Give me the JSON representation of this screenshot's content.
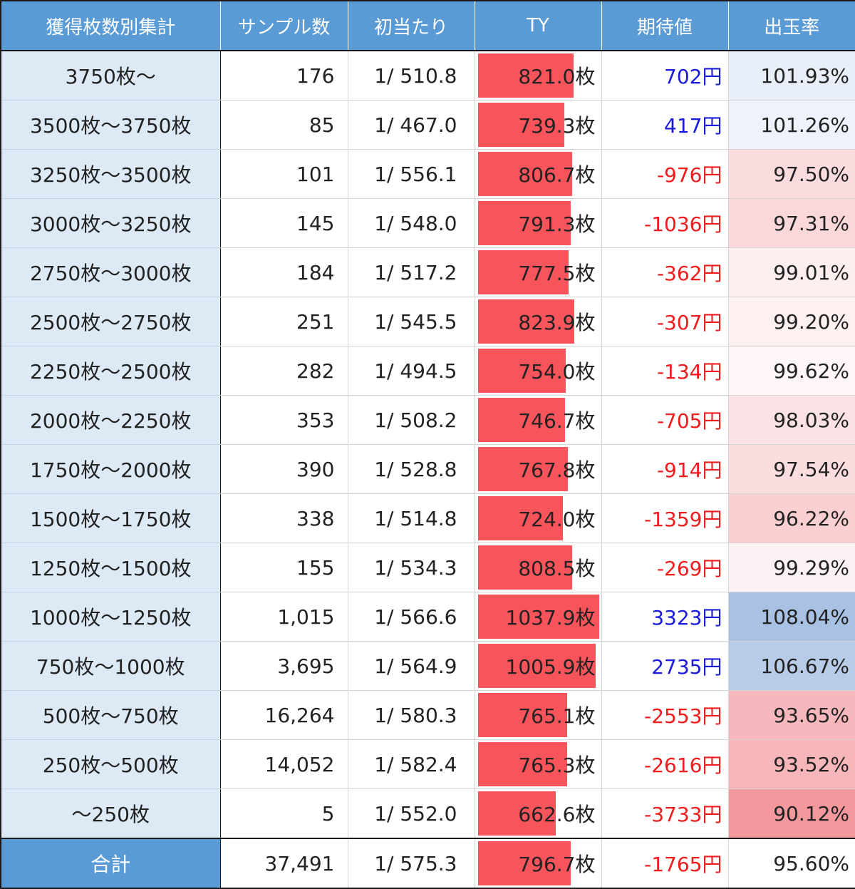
{
  "headers": [
    "獲得枚数別集計",
    "サンプル数",
    "初当たり",
    "TY",
    "期待値",
    "出玉率"
  ],
  "colors": {
    "header_bg": "#5b9bd5",
    "label_bg": "#ddeaf6",
    "ty_bar": "#f8545c",
    "positive_ev": "#1a1adc",
    "negative_ev": "#ee1c1c"
  },
  "ty_scale_max": 1037.9,
  "rows": [
    {
      "label": "3750枚〜",
      "samples": "176",
      "first_hit": "1/ 510.8",
      "ty": "821.0枚",
      "ty_value": 821.0,
      "ev": "702円",
      "ev_sign": "pos",
      "rate": "101.93%",
      "rate_bg": "#e9eff8"
    },
    {
      "label": "3500枚〜3750枚",
      "samples": "85",
      "first_hit": "1/ 467.0",
      "ty": "739.3枚",
      "ty_value": 739.3,
      "ev": "417円",
      "ev_sign": "pos",
      "rate": "101.26%",
      "rate_bg": "#eef2fa"
    },
    {
      "label": "3250枚〜3500枚",
      "samples": "101",
      "first_hit": "1/ 556.1",
      "ty": "806.7枚",
      "ty_value": 806.7,
      "ev": "-976円",
      "ev_sign": "neg",
      "rate": "97.50%",
      "rate_bg": "#fbdcde"
    },
    {
      "label": "3000枚〜3250枚",
      "samples": "145",
      "first_hit": "1/ 548.0",
      "ty": "791.3枚",
      "ty_value": 791.3,
      "ev": "-1036円",
      "ev_sign": "neg",
      "rate": "97.31%",
      "rate_bg": "#fad8da"
    },
    {
      "label": "2750枚〜3000枚",
      "samples": "184",
      "first_hit": "1/ 517.2",
      "ty": "777.5枚",
      "ty_value": 777.5,
      "ev": "-362円",
      "ev_sign": "neg",
      "rate": "99.01%",
      "rate_bg": "#fdeef0"
    },
    {
      "label": "2500枚〜2750枚",
      "samples": "251",
      "first_hit": "1/ 545.5",
      "ty": "823.9枚",
      "ty_value": 823.9,
      "ev": "-307円",
      "ev_sign": "neg",
      "rate": "99.20%",
      "rate_bg": "#fdf0f1"
    },
    {
      "label": "2250枚〜2500枚",
      "samples": "282",
      "first_hit": "1/ 494.5",
      "ty": "754.0枚",
      "ty_value": 754.0,
      "ev": "-134円",
      "ev_sign": "neg",
      "rate": "99.62%",
      "rate_bg": "#fef6f7"
    },
    {
      "label": "2000枚〜2250枚",
      "samples": "353",
      "first_hit": "1/ 508.2",
      "ty": "746.7枚",
      "ty_value": 746.7,
      "ev": "-705円",
      "ev_sign": "neg",
      "rate": "98.03%",
      "rate_bg": "#fbe3e5"
    },
    {
      "label": "1750枚〜2000枚",
      "samples": "390",
      "first_hit": "1/ 528.8",
      "ty": "767.8枚",
      "ty_value": 767.8,
      "ev": "-914円",
      "ev_sign": "neg",
      "rate": "97.54%",
      "rate_bg": "#fbdddf"
    },
    {
      "label": "1500枚〜1750枚",
      "samples": "338",
      "first_hit": "1/ 514.8",
      "ty": "724.0枚",
      "ty_value": 724.0,
      "ev": "-1359円",
      "ev_sign": "neg",
      "rate": "96.22%",
      "rate_bg": "#f9cfd2"
    },
    {
      "label": "1250枚〜1500枚",
      "samples": "155",
      "first_hit": "1/ 534.3",
      "ty": "808.5枚",
      "ty_value": 808.5,
      "ev": "-269円",
      "ev_sign": "neg",
      "rate": "99.29%",
      "rate_bg": "#fdf2f3"
    },
    {
      "label": "1000枚〜1250枚",
      "samples": "1,015",
      "first_hit": "1/ 566.6",
      "ty": "1037.9枚",
      "ty_value": 1037.9,
      "ev": "3323円",
      "ev_sign": "pos",
      "rate": "108.04%",
      "rate_bg": "#a9c1e2"
    },
    {
      "label": "750枚〜1000枚",
      "samples": "3,695",
      "first_hit": "1/ 564.9",
      "ty": "1005.9枚",
      "ty_value": 1005.9,
      "ev": "2735円",
      "ev_sign": "pos",
      "rate": "106.67%",
      "rate_bg": "#b8cce8"
    },
    {
      "label": "500枚〜750枚",
      "samples": "16,264",
      "first_hit": "1/ 580.3",
      "ty": "765.1枚",
      "ty_value": 765.1,
      "ev": "-2553円",
      "ev_sign": "neg",
      "rate": "93.65%",
      "rate_bg": "#f6b8bc"
    },
    {
      "label": "250枚〜500枚",
      "samples": "14,052",
      "first_hit": "1/ 582.4",
      "ty": "765.3枚",
      "ty_value": 765.3,
      "ev": "-2616円",
      "ev_sign": "neg",
      "rate": "93.52%",
      "rate_bg": "#f6b6ba"
    },
    {
      "label": "〜250枚",
      "samples": "5",
      "first_hit": "1/ 552.0",
      "ty": "662.6枚",
      "ty_value": 662.6,
      "ev": "-3733円",
      "ev_sign": "neg",
      "rate": "90.12%",
      "rate_bg": "#f3999e"
    }
  ],
  "total": {
    "label": "合計",
    "samples": "37,491",
    "first_hit": "1/ 575.3",
    "ty": "796.7枚",
    "ty_value": 796.7,
    "ev": "-1765円",
    "ev_sign": "neg",
    "rate": "95.60%",
    "rate_bg": "#ffffff"
  }
}
